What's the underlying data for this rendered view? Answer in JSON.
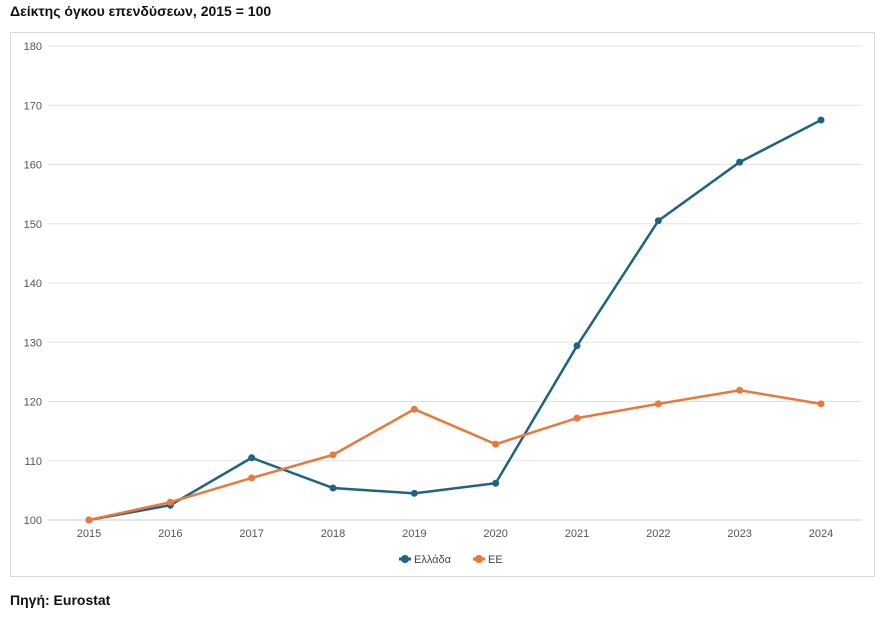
{
  "chart_data": {
    "type": "line",
    "title": "Δείκτης όγκου επενδύσεων, 2015 = 100",
    "source": "Πηγή: Eurostat",
    "x": [
      "2015",
      "2016",
      "2017",
      "2018",
      "2019",
      "2020",
      "2021",
      "2022",
      "2023",
      "2024"
    ],
    "ylim": [
      100,
      180
    ],
    "yticks": [
      100,
      110,
      120,
      130,
      140,
      150,
      160,
      170,
      180
    ],
    "grid": true,
    "legend_position": "bottom-center",
    "series": [
      {
        "name": "Ελλάδα",
        "color": "#1f6382",
        "values": [
          100,
          102.5,
          110.5,
          105.4,
          104.5,
          106.2,
          129.4,
          150.5,
          160.4,
          167.5
        ]
      },
      {
        "name": "ΕΕ",
        "color": "#e8793a",
        "values": [
          100,
          103.0,
          107.1,
          111.0,
          118.7,
          112.8,
          117.2,
          119.6,
          121.9,
          119.6
        ]
      }
    ]
  }
}
